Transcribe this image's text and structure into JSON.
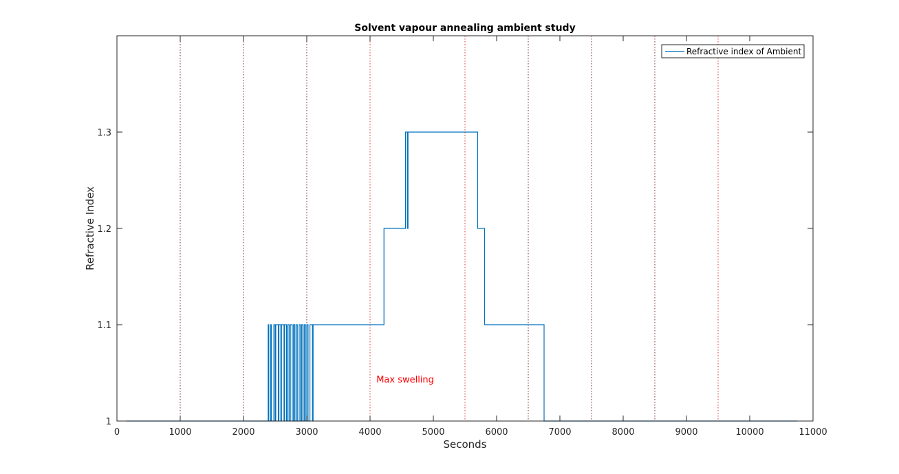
{
  "chart_data": {
    "type": "line",
    "title": "Solvent vapour annealing ambient study",
    "xlabel": "Seconds",
    "ylabel": "Refractive Index",
    "xlim": [
      0,
      11000
    ],
    "ylim": [
      1,
      1.4
    ],
    "xticks": [
      0,
      1000,
      2000,
      3000,
      4000,
      5000,
      6000,
      7000,
      8000,
      9000,
      10000,
      11000
    ],
    "xtick_labels": [
      "0",
      "1000",
      "2000",
      "3000",
      "4000",
      "5000",
      "6000",
      "7000",
      "8000",
      "9000",
      "10000",
      "11000"
    ],
    "yticks": [
      1,
      1.1,
      1.2,
      1.3
    ],
    "ytick_labels": [
      "1",
      "1.1",
      "1.2",
      "1.3"
    ],
    "grid": false,
    "legend_position": "top-right",
    "series": [
      {
        "name": "Refractive index of Ambient",
        "color": "#0072bd",
        "x": [
          150,
          2390,
          2390,
          2400,
          2400,
          2430,
          2430,
          2440,
          2440,
          2480,
          2480,
          2500,
          2500,
          2510,
          2510,
          2550,
          2550,
          2560,
          2560,
          2590,
          2590,
          2600,
          2600,
          2640,
          2640,
          2650,
          2650,
          2680,
          2680,
          2700,
          2700,
          2720,
          2720,
          2740,
          2740,
          2770,
          2770,
          2790,
          2790,
          2810,
          2810,
          2830,
          2830,
          2850,
          2850,
          2880,
          2880,
          2900,
          2900,
          2920,
          2920,
          2940,
          2940,
          2960,
          2960,
          2980,
          2980,
          3000,
          3000,
          3020,
          3020,
          3050,
          3050,
          3090,
          3090,
          3100,
          3100,
          4220,
          4220,
          4560,
          4560,
          4590,
          4590,
          4600,
          4600,
          5700,
          5700,
          5810,
          5810,
          5830,
          5830,
          6750,
          6750,
          10750
        ],
        "y": [
          1,
          1,
          1.1,
          1.1,
          1,
          1,
          1.1,
          1.1,
          1,
          1,
          1.1,
          1.1,
          1,
          1,
          1.1,
          1.1,
          1,
          1,
          1.1,
          1.1,
          1,
          1,
          1.1,
          1.1,
          1,
          1,
          1.1,
          1.1,
          1,
          1,
          1.1,
          1.1,
          1,
          1,
          1.1,
          1.1,
          1,
          1,
          1.1,
          1.1,
          1,
          1,
          1.1,
          1.1,
          1,
          1,
          1.1,
          1.1,
          1,
          1,
          1.1,
          1.1,
          1,
          1,
          1.1,
          1.1,
          1,
          1,
          1.1,
          1.1,
          1,
          1,
          1.1,
          1.1,
          1,
          1,
          1.1,
          1.1,
          1.2,
          1.2,
          1.3,
          1.3,
          1.2,
          1.2,
          1.3,
          1.3,
          1.2,
          1.2,
          1.1,
          1.1,
          1.1,
          1.1,
          1,
          1
        ]
      }
    ],
    "vlines": [
      {
        "x": 1000,
        "color": "#7a1f1f"
      },
      {
        "x": 2000,
        "color": "#7a1f1f"
      },
      {
        "x": 3000,
        "color": "#7a1f1f"
      },
      {
        "x": 4000,
        "color": "#e03030"
      },
      {
        "x": 5500,
        "color": "#e03030"
      },
      {
        "x": 6500,
        "color": "#7a1f1f"
      },
      {
        "x": 7500,
        "color": "#7a1f1f"
      },
      {
        "x": 8500,
        "color": "#7a1f1f"
      },
      {
        "x": 9500,
        "color": "#e03030"
      }
    ],
    "annotations": [
      {
        "text": "Max swelling",
        "x": 4100,
        "y": 1.04,
        "color": "#ff0000"
      }
    ]
  }
}
